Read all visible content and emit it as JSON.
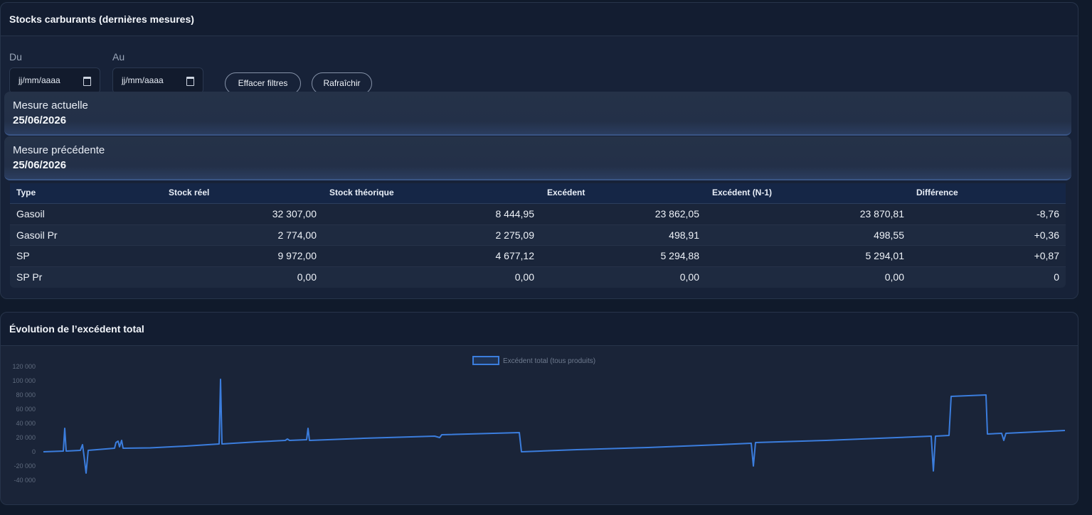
{
  "stocks": {
    "title": "Stocks carburants (dernières mesures)",
    "filters": {
      "from_label": "Du",
      "to_label": "Au",
      "from_value": "jj/mm/aaaa",
      "to_value": "jj/mm/aaaa",
      "clear_button": "Effacer filtres",
      "refresh_button": "Rafraîchir"
    },
    "current": {
      "label": "Mesure actuelle",
      "date": "25/06/2026"
    },
    "previous": {
      "label": "Mesure précédente",
      "date": "25/06/2026"
    },
    "table": {
      "headers": [
        "Type",
        "Stock réel",
        "Stock théorique",
        "Excédent",
        "Excédent (N-1)",
        "Différence"
      ],
      "rows": [
        [
          "Gasoil",
          "32 307,00",
          "8 444,95",
          "23 862,05",
          "23 870,81",
          "-8,76"
        ],
        [
          "Gasoil Pr",
          "2 774,00",
          "2 275,09",
          "498,91",
          "498,55",
          "+0,36"
        ],
        [
          "SP",
          "9 972,00",
          "4 677,12",
          "5 294,88",
          "5 294,01",
          "+0,87"
        ],
        [
          "SP Pr",
          "0,00",
          "0,00",
          "0,00",
          "0,00",
          "0"
        ]
      ]
    }
  },
  "evolution": {
    "title": "Évolution de l’excédent total",
    "chart_data": {
      "type": "line",
      "title": "",
      "xlabel": "",
      "ylabel": "",
      "ylim": [
        -40000,
        120000
      ],
      "yticks": [
        "120 000",
        "100 000",
        "80 000",
        "60 000",
        "40 000",
        "20 000",
        "0",
        "-20 000",
        "-40 000"
      ],
      "legend_position": "top-center",
      "grid": false,
      "series": [
        {
          "name": "Excédent total (tous produits)",
          "color": "#3b7ddd",
          "points": [
            [
              0,
              0
            ],
            [
              28,
              1000
            ],
            [
              30,
              33000
            ],
            [
              32,
              1000
            ],
            [
              52,
              2000
            ],
            [
              55,
              10000
            ],
            [
              57,
              -5000
            ],
            [
              60,
              -30000
            ],
            [
              63,
              2000
            ],
            [
              100,
              5000
            ],
            [
              102,
              13000
            ],
            [
              105,
              15000
            ],
            [
              107,
              7000
            ],
            [
              110,
              16000
            ],
            [
              112,
              5000
            ],
            [
              150,
              5500
            ],
            [
              200,
              8000
            ],
            [
              247,
              11000
            ],
            [
              249,
              102000
            ],
            [
              251,
              11000
            ],
            [
              300,
              14000
            ],
            [
              340,
              16000
            ],
            [
              343,
              18000
            ],
            [
              346,
              16000
            ],
            [
              370,
              17000
            ],
            [
              372,
              33000
            ],
            [
              374,
              16000
            ],
            [
              450,
              19000
            ],
            [
              550,
              22000
            ],
            [
              557,
              20000
            ],
            [
              560,
              24000
            ],
            [
              669,
              27000
            ],
            [
              672,
              0
            ],
            [
              750,
              3000
            ],
            [
              850,
              6000
            ],
            [
              900,
              8000
            ],
            [
              950,
              10000
            ],
            [
              995,
              12000
            ],
            [
              998,
              -20000
            ],
            [
              1001,
              13000
            ],
            [
              1100,
              16000
            ],
            [
              1200,
              20000
            ],
            [
              1248,
              22000
            ],
            [
              1251,
              -27000
            ],
            [
              1254,
              22000
            ],
            [
              1273,
              23000
            ],
            [
              1276,
              78000
            ],
            [
              1325,
              80000
            ],
            [
              1327,
              25000
            ],
            [
              1347,
              26000
            ],
            [
              1350,
              16000
            ],
            [
              1353,
              26000
            ],
            [
              1436,
              30000
            ]
          ]
        }
      ]
    }
  }
}
